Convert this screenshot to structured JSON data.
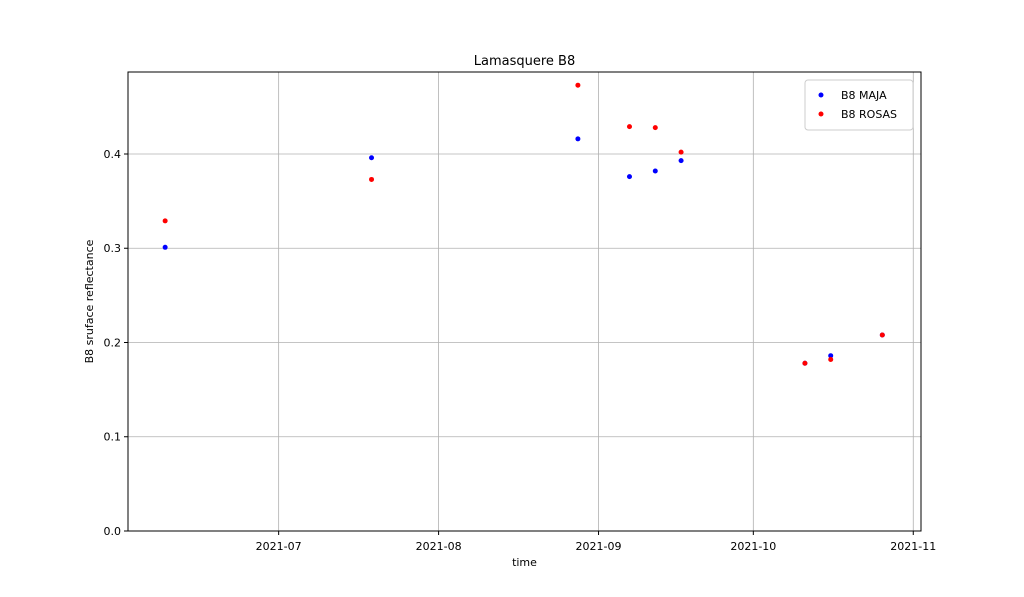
{
  "chart_data": {
    "type": "scatter",
    "title": "Lamasquere B8",
    "x_label": "time",
    "y_label": "B8 sruface reflectance",
    "x": [
      160,
      200,
      240,
      250,
      255,
      260,
      284,
      289,
      299
    ],
    "series": [
      {
        "name": "B8 MAJA",
        "color": "#0000ff",
        "values": [
          0.301,
          0.396,
          0.416,
          0.376,
          0.382,
          0.393,
          0.178,
          0.186,
          0.208
        ]
      },
      {
        "name": "B8 ROSAS",
        "color": "#ff0000",
        "values": [
          0.329,
          0.373,
          0.473,
          0.429,
          0.428,
          0.402,
          0.178,
          0.182,
          0.208
        ]
      }
    ],
    "xlim": [
      152.8,
      306.5
    ],
    "xticks": [
      {
        "value": 182,
        "label": "2021-07"
      },
      {
        "value": 213,
        "label": "2021-08"
      },
      {
        "value": 244,
        "label": "2021-09"
      },
      {
        "value": 274,
        "label": "2021-10"
      },
      {
        "value": 305,
        "label": "2021-11"
      }
    ],
    "ylim": [
      0,
      0.487
    ],
    "yticks": [
      {
        "value": 0,
        "label": "0.0"
      },
      0.1,
      0.2,
      0.3,
      0.4
    ],
    "grid": true,
    "legend": "upper right"
  }
}
